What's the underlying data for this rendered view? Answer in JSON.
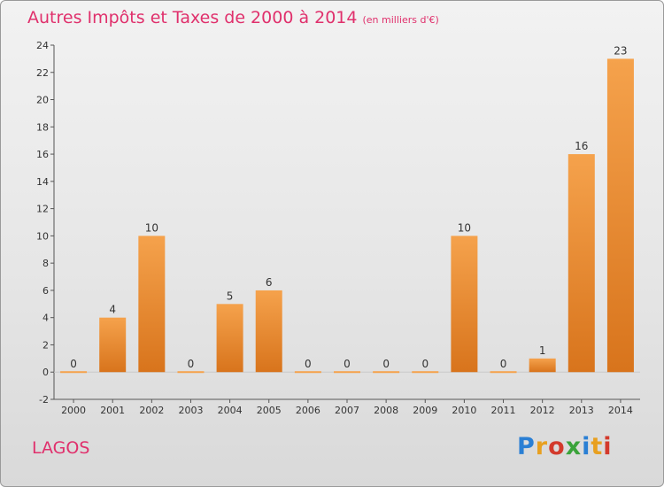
{
  "header": {
    "title": "Autres Impôts et Taxes de 2000 à 2014",
    "unit": "(en milliers d'€)"
  },
  "footer": {
    "commune": "LAGOS",
    "logo_letters": [
      "P",
      "r",
      "o",
      "x",
      "i",
      "t",
      "i"
    ],
    "logo_colors": [
      "#2a7fd4",
      "#e8a020",
      "#d33a2c",
      "#3aa33a",
      "#2a7fd4",
      "#e8a020",
      "#d33a2c"
    ]
  },
  "chart_data": {
    "type": "bar",
    "title": "Autres Impôts et Taxes de 2000 à 2014",
    "subtitle": "(en milliers d'€)",
    "categories": [
      "2000",
      "2001",
      "2002",
      "2003",
      "2004",
      "2005",
      "2006",
      "2007",
      "2008",
      "2009",
      "2010",
      "2011",
      "2012",
      "2013",
      "2014"
    ],
    "values": [
      0,
      4,
      10,
      0,
      5,
      6,
      0,
      0,
      0,
      0,
      10,
      0,
      1,
      16,
      23
    ],
    "data_labels": [
      "0",
      "4",
      "10",
      "0",
      "5",
      "6",
      "0",
      "0",
      "0",
      "0",
      "10",
      "0",
      "1",
      "16",
      "23"
    ],
    "ylim": [
      -2,
      24
    ],
    "yticks": [
      -2,
      0,
      2,
      4,
      6,
      8,
      10,
      12,
      14,
      16,
      18,
      20,
      22,
      24
    ],
    "ytick_labels": [
      "-2",
      "0",
      "2",
      "4",
      "6",
      "8",
      "10",
      "12",
      "14",
      "16",
      "18",
      "20",
      "22",
      "24"
    ],
    "grid": false,
    "legend": "none",
    "bar_color_light": "#f5a24c",
    "bar_color_dark": "#d8741c"
  }
}
